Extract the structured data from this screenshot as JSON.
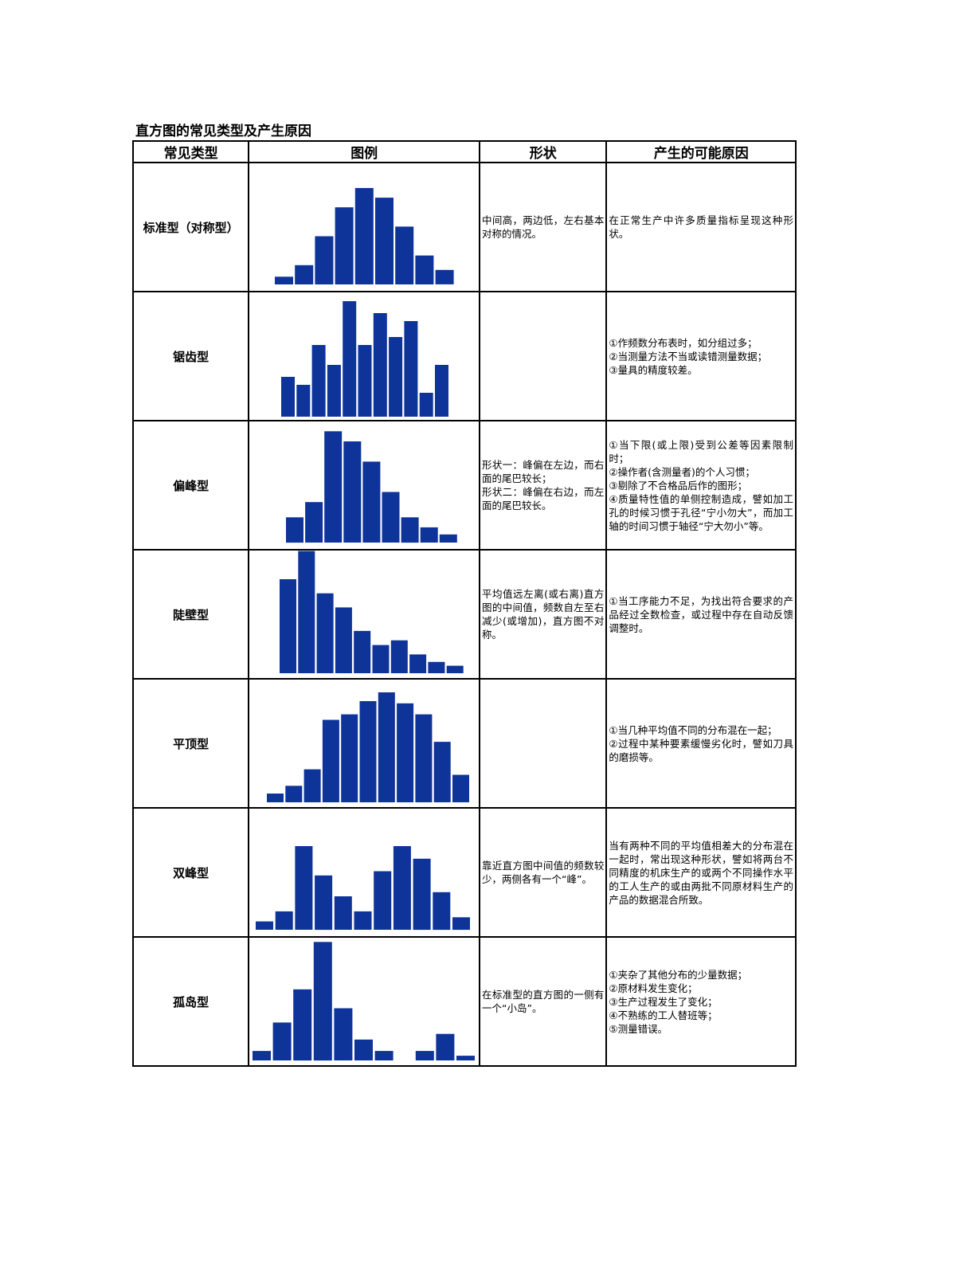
{
  "title": "直方图的常见类型及产生原因",
  "headers": [
    "常见类型",
    "图例",
    "形状",
    "产生的可能原因"
  ],
  "bar_color": "#0f3499",
  "rows": [
    {
      "type": "标准型（对称型）",
      "shape": [
        "中间高，两边低，左右基本对称的情况。"
      ],
      "cause": [
        "在正常生产中许多质量指标呈现这种形状。"
      ]
    },
    {
      "type": "锯齿型",
      "shape": [],
      "cause": [
        "①作频数分布表时，如分组过多；",
        "②当测量方法不当或读错测量数据；",
        "③量具的精度较差。"
      ]
    },
    {
      "type": "偏峰型",
      "shape": [
        "形状一：峰偏在左边，而右面的尾巴较长；",
        "形状二：峰偏在右边，而左面的尾巴较长。"
      ],
      "cause": [
        "①当下限(或上限)受到公差等因素限制时；",
        "②操作者(含测量者)的个人习惯；",
        "③剔除了不合格品后作的图形；",
        "④质量特性值的单侧控制造成，譬如加工孔的时候习惯于孔径“宁小勿大”，而加工轴的时间习惯于轴径“宁大勿小”等。"
      ]
    },
    {
      "type": "陡壁型",
      "shape": [
        "平均值远左离(或右离)直方图的中间值，频数自左至右减少(或增加)，直方图不对称。"
      ],
      "cause": [
        "①当工序能力不足，为找出符合要求的产品经过全数检查，或过程中存在自动反馈调整时。"
      ]
    },
    {
      "type": "平顶型",
      "shape": [],
      "cause": [
        "①当几种平均值不同的分布混在一起；",
        "②过程中某种要素缓慢劣化时，譬如刀具的磨损等。"
      ]
    },
    {
      "type": "双峰型",
      "shape": [
        "靠近直方图中间值的频数较少，两侧各有一个“峰”。"
      ],
      "cause": [
        "当有两种不同的平均值相差大的分布混在一起时，常出现这种形状，譬如将两台不同精度的机床生产的或两个不同操作水平的工人生产的或由两批不同原材料生产的产品的数据混合所致。"
      ]
    },
    {
      "type": "孤岛型",
      "shape": [
        "在标准型的直方图的一侧有一个“小岛”。"
      ],
      "cause": [
        "①夹杂了其他分布的少量数据；",
        "②原材料发生变化；",
        "③生产过程发生了变化；",
        "④不熟练的工人替班等；",
        "⑤测量错误。"
      ]
    }
  ],
  "chart_data": [
    {
      "type": "bar",
      "values": [
        8,
        20,
        50,
        80,
        100,
        90,
        60,
        30,
        15
      ]
    },
    {
      "type": "bar",
      "values": [
        50,
        40,
        90,
        65,
        145,
        90,
        130,
        100,
        120,
        30,
        65
      ]
    },
    {
      "type": "bar",
      "values": [
        25,
        40,
        110,
        100,
        80,
        50,
        25,
        15,
        8
      ]
    },
    {
      "type": "bar",
      "values": [
        100,
        130,
        85,
        70,
        45,
        30,
        35,
        20,
        12,
        8
      ]
    },
    {
      "type": "bar",
      "values": [
        8,
        15,
        30,
        75,
        80,
        92,
        100,
        90,
        80,
        55,
        25
      ]
    },
    {
      "type": "bar",
      "values": [
        10,
        22,
        100,
        65,
        40,
        22,
        70,
        100,
        85,
        45,
        15
      ]
    },
    {
      "type": "bar",
      "values": [
        10,
        40,
        75,
        125,
        55,
        22,
        10,
        0,
        10,
        28,
        5
      ]
    }
  ]
}
